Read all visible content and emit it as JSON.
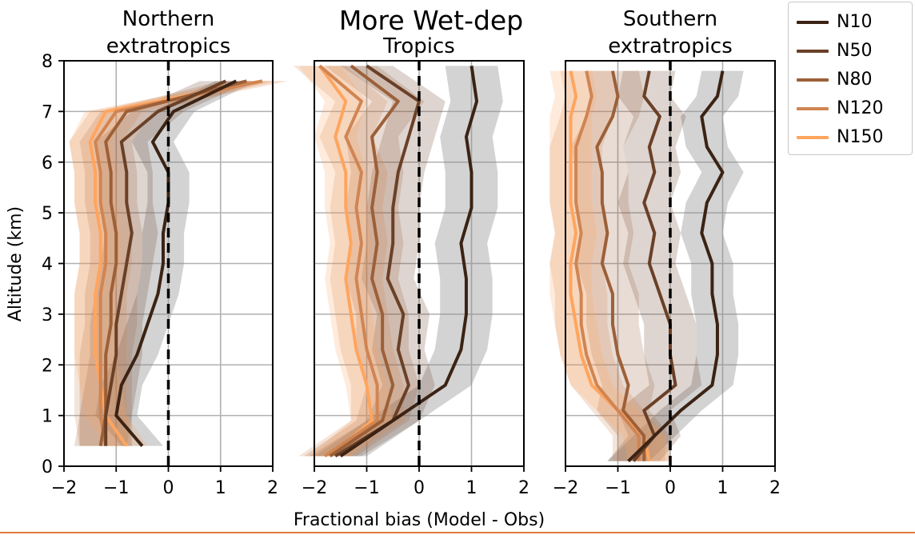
{
  "figure": {
    "title": "More Wet-dep",
    "xlabel": "Fractional bias (Model - Obs)",
    "ylabel": "Altitude (km)"
  },
  "legend": [
    {
      "name": "N10",
      "color": "#3b2314"
    },
    {
      "name": "N50",
      "color": "#6a4027"
    },
    {
      "name": "N80",
      "color": "#9c6039"
    },
    {
      "name": "N120",
      "color": "#d08552"
    },
    {
      "name": "N150",
      "color": "#ffa55e"
    }
  ],
  "chart_data": [
    {
      "type": "line",
      "title": "Northern\nextratropics",
      "xlabel": "",
      "ylabel": "Altitude (km)",
      "xlim": [
        -2,
        2
      ],
      "ylim": [
        0,
        8
      ],
      "xticks": [
        "−2",
        "−1",
        "0",
        "1",
        "2"
      ],
      "yticks": [
        "0",
        "1",
        "2",
        "3",
        "4",
        "5",
        "6",
        "7",
        "8"
      ],
      "grid": true,
      "reference_line_x": 0,
      "y": [
        0.4,
        1.0,
        1.6,
        2.2,
        2.8,
        3.4,
        4.0,
        4.6,
        5.2,
        5.8,
        6.4,
        7.0,
        7.6
      ],
      "series": [
        {
          "name": "N10",
          "x": [
            -0.5,
            -1.0,
            -0.9,
            -0.6,
            -0.4,
            -0.2,
            -0.1,
            -0.1,
            0.0,
            0.0,
            -0.3,
            0.1,
            1.3
          ],
          "spread": 0.4
        },
        {
          "name": "N50",
          "x": [
            -1.2,
            -1.2,
            -1.1,
            -1.0,
            -1.0,
            -0.9,
            -0.8,
            -0.7,
            -0.8,
            -0.8,
            -0.9,
            -0.2,
            1.1
          ],
          "spread": 0.5
        },
        {
          "name": "N80",
          "x": [
            -1.3,
            -1.2,
            -1.2,
            -1.2,
            -1.1,
            -1.1,
            -1.0,
            -1.0,
            -1.1,
            -1.1,
            -1.2,
            -0.8,
            1.5
          ],
          "spread": 0.5
        },
        {
          "name": "N120",
          "x": [
            -1.2,
            -1.3,
            -1.3,
            -1.3,
            -1.3,
            -1.3,
            -1.2,
            -1.2,
            -1.3,
            -1.3,
            -1.4,
            -1.0,
            1.8
          ],
          "spread": 0.5
        },
        {
          "name": "N150",
          "x": [
            -0.8,
            -1.2,
            -1.3,
            -1.4,
            -1.4,
            -1.4,
            -1.3,
            -1.3,
            -1.4,
            -1.4,
            -1.5,
            -1.2,
            1.8
          ],
          "spread": 0.4
        }
      ]
    },
    {
      "type": "line",
      "title": "Tropics",
      "xlabel": "",
      "ylabel": "",
      "xlim": [
        -2,
        2
      ],
      "ylim": [
        0,
        8
      ],
      "xticks": [
        "−2",
        "−1",
        "0",
        "1",
        "2"
      ],
      "yticks": [],
      "grid": true,
      "reference_line_x": 0,
      "y": [
        0.2,
        0.9,
        1.6,
        2.3,
        3.0,
        3.7,
        4.4,
        5.1,
        5.8,
        6.5,
        7.2,
        7.9
      ],
      "series": [
        {
          "name": "N10",
          "x": [
            -1.5,
            -0.5,
            0.5,
            0.8,
            0.9,
            0.9,
            0.8,
            1.0,
            1.0,
            0.9,
            1.1,
            1.0
          ],
          "spread": 0.5
        },
        {
          "name": "N50",
          "x": [
            -1.6,
            -0.5,
            -0.2,
            -0.4,
            -0.3,
            -0.6,
            -0.5,
            -0.5,
            -0.4,
            -0.2,
            0.0,
            -1.0
          ],
          "spread": 0.5
        },
        {
          "name": "N80",
          "x": [
            -1.7,
            -0.7,
            -0.5,
            -0.7,
            -0.7,
            -0.9,
            -0.8,
            -0.9,
            -0.8,
            -0.9,
            -0.4,
            -1.3
          ],
          "spread": 0.5
        },
        {
          "name": "N120",
          "x": [
            -1.8,
            -0.8,
            -0.8,
            -1.0,
            -1.1,
            -1.2,
            -1.1,
            -1.2,
            -1.1,
            -1.4,
            -1.1,
            -1.9
          ],
          "spread": 0.5
        },
        {
          "name": "N150",
          "x": [
            -1.7,
            -0.9,
            -1.0,
            -1.2,
            -1.3,
            -1.4,
            -1.3,
            -1.4,
            -1.4,
            -1.6,
            -1.4,
            -1.9
          ],
          "spread": 0.4
        }
      ]
    },
    {
      "type": "line",
      "title": "Southern\nextratropics",
      "xlabel": "",
      "ylabel": "",
      "xlim": [
        -2,
        2
      ],
      "ylim": [
        0,
        8
      ],
      "xticks": [
        "−2",
        "−1",
        "0",
        "1",
        "2"
      ],
      "yticks": [],
      "grid": true,
      "reference_line_x": 0,
      "y": [
        0.1,
        0.6,
        1.1,
        1.6,
        2.2,
        2.8,
        3.4,
        4.0,
        4.6,
        5.2,
        5.8,
        6.3,
        6.9,
        7.3,
        7.8
      ],
      "series": [
        {
          "name": "N10",
          "x": [
            -0.8,
            -0.3,
            0.2,
            0.8,
            0.9,
            0.9,
            0.8,
            0.8,
            0.6,
            0.7,
            1.0,
            0.7,
            0.6,
            0.9,
            1.0
          ],
          "spread": 0.4
        },
        {
          "name": "N50",
          "x": [
            -0.7,
            -0.3,
            -0.5,
            0.1,
            0.0,
            0.0,
            -0.2,
            -0.4,
            -0.3,
            -0.5,
            -0.3,
            -0.4,
            -0.2,
            -0.5,
            -0.4
          ],
          "spread": 0.5
        },
        {
          "name": "N80",
          "x": [
            -0.5,
            -0.5,
            -0.9,
            -0.8,
            -1.0,
            -1.1,
            -1.1,
            -1.3,
            -1.2,
            -1.3,
            -1.3,
            -1.4,
            -1.1,
            -1.0,
            -1.1
          ],
          "spread": 0.5
        },
        {
          "name": "N120",
          "x": [
            -0.6,
            -0.6,
            -1.0,
            -1.4,
            -1.6,
            -1.7,
            -1.7,
            -1.8,
            -1.7,
            -1.8,
            -1.8,
            -1.8,
            -1.6,
            -1.5,
            -1.6
          ],
          "spread": 0.5
        },
        {
          "name": "N150",
          "x": [
            -0.4,
            -0.5,
            -1.0,
            -1.5,
            -1.7,
            -1.8,
            -1.9,
            -1.9,
            -1.8,
            -1.9,
            -1.9,
            -1.9,
            -1.9,
            -1.8,
            -1.9
          ],
          "spread": 0.4
        }
      ]
    }
  ]
}
